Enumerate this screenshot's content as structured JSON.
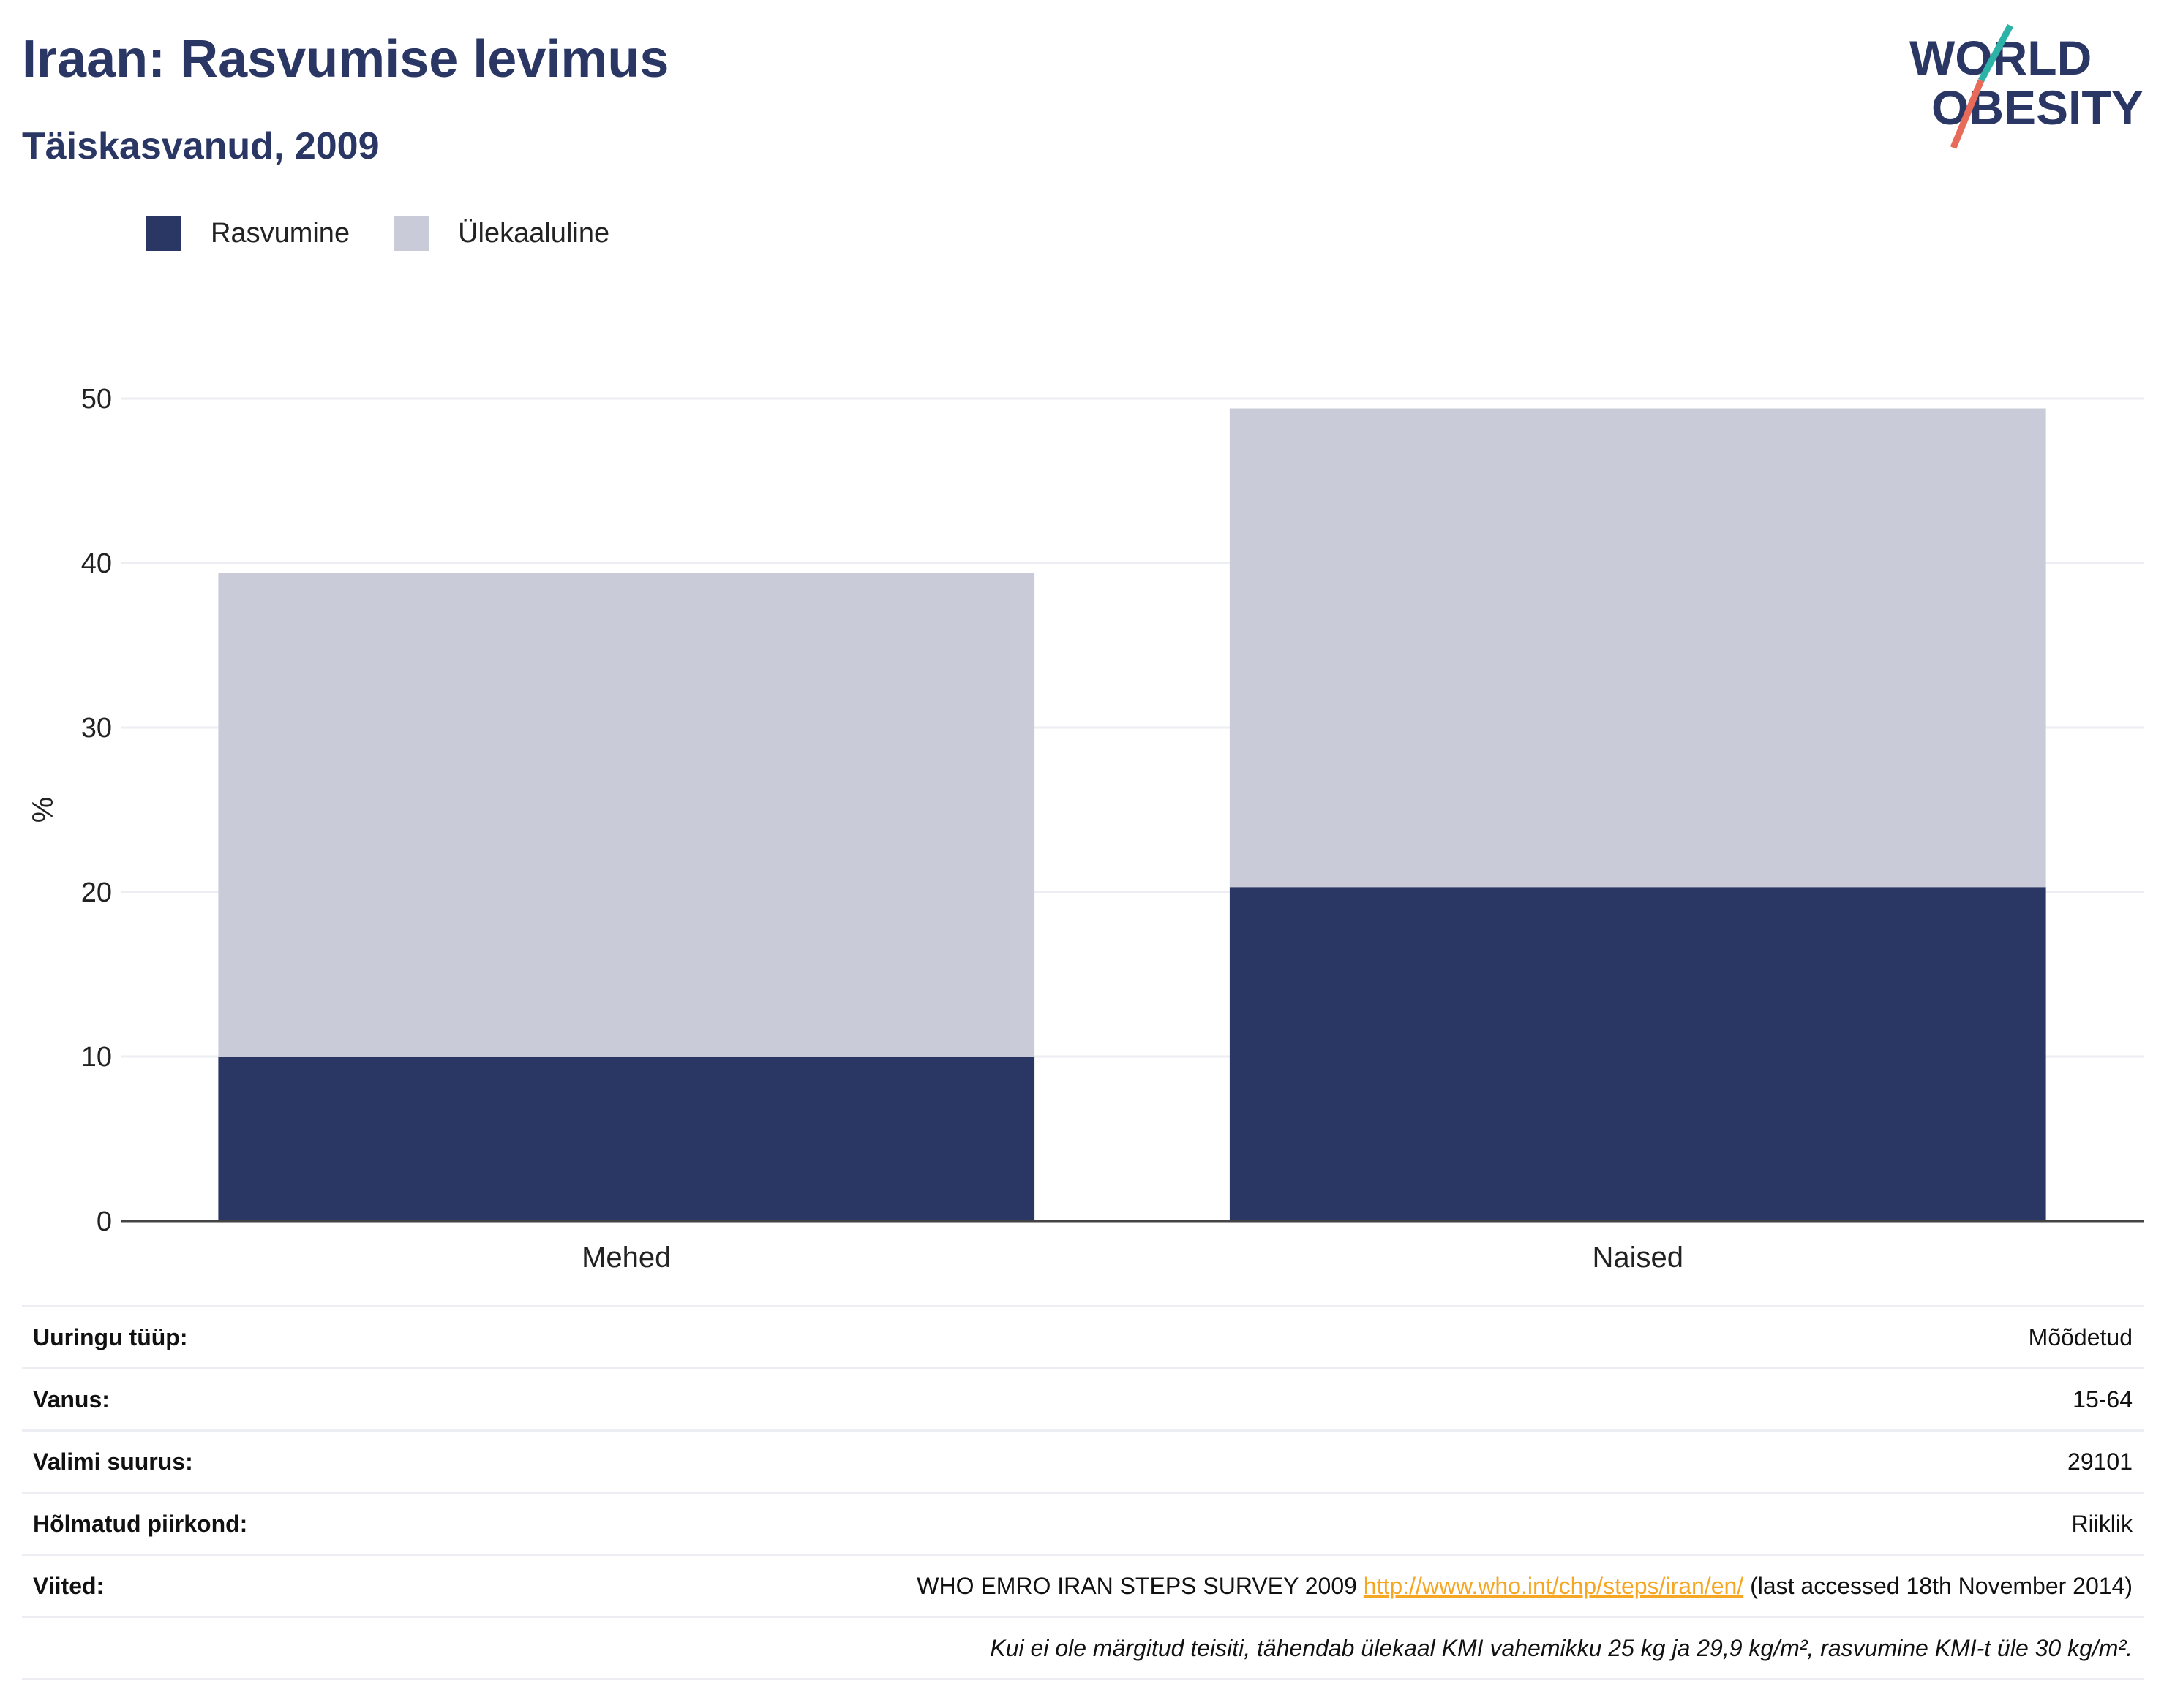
{
  "header": {
    "title": "Iraan: Rasvumise levimus",
    "subtitle": "Täiskasvanud, 2009",
    "logo_text": [
      "WORLD",
      "OBESITY"
    ]
  },
  "colors": {
    "title": "#2a3663",
    "obesity": "#2a3663",
    "overweight": "#c9ccd8",
    "gridline": "#eceef3",
    "link": "#f5a623",
    "logo_teal": "#2bb3a7",
    "logo_coral": "#e86a58"
  },
  "chart_data": {
    "type": "bar",
    "stacked": true,
    "categories": [
      "Mehed",
      "Naised"
    ],
    "series": [
      {
        "name": "Rasvumine",
        "values": [
          10.0,
          20.3
        ]
      },
      {
        "name": "Ülekaaluline",
        "values": [
          29.4,
          29.1
        ]
      }
    ],
    "totals": [
      39.4,
      49.4
    ],
    "ylabel": "%",
    "xlabel": "",
    "ylim": [
      0,
      50
    ],
    "yticks": [
      0,
      10,
      20,
      30,
      40,
      50
    ],
    "grid": true,
    "legend_position": "top-left"
  },
  "info_table": [
    {
      "label": "Uuringu tüüp:",
      "value": "Mõõdetud"
    },
    {
      "label": "Vanus:",
      "value": "15-64"
    },
    {
      "label": "Valimi suurus:",
      "value": "29101"
    },
    {
      "label": "Hõlmatud piirkond:",
      "value": "Riiklik"
    }
  ],
  "references": {
    "label": "Viited:",
    "text_before": "WHO EMRO IRAN STEPS SURVEY 2009 ",
    "link": "http://www.who.int/chp/steps/iran/en/",
    "text_after": " (last accessed 18th November 2014)"
  },
  "footnote": "Kui ei ole märgitud teisiti, tähendab ülekaal KMI vahemikku 25 kg ja 29,9 kg/m², rasvumine KMI-t üle 30 kg/m²."
}
